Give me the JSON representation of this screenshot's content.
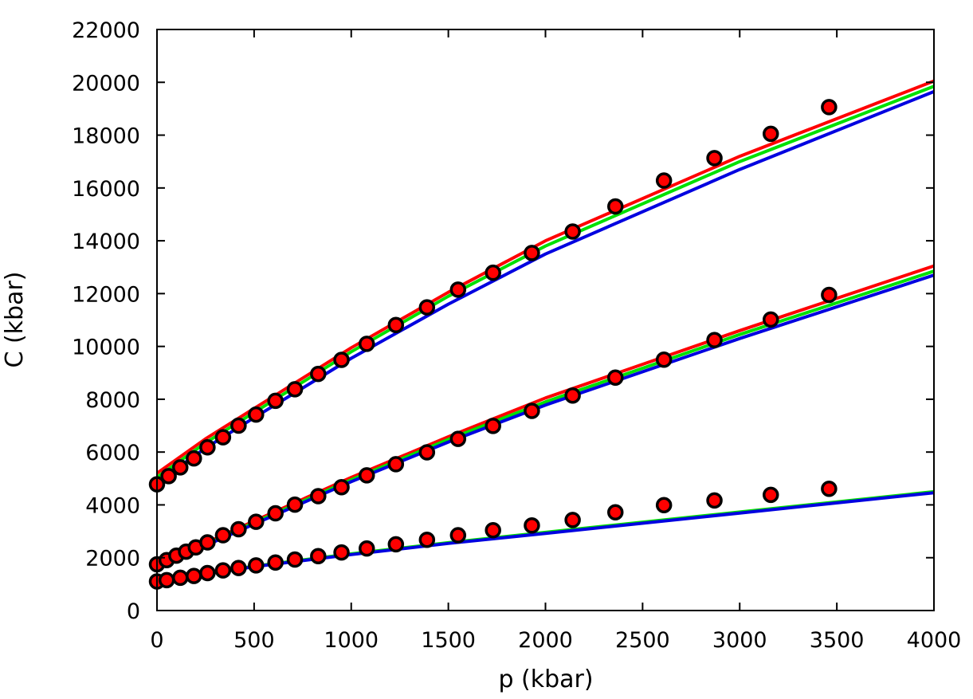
{
  "chart_data": {
    "type": "scatter",
    "xlabel": "p (kbar)",
    "ylabel": "C (kbar)",
    "xlim": [
      0,
      4000
    ],
    "ylim": [
      0,
      22000
    ],
    "xticks": [
      "0",
      "500",
      "1000",
      "1500",
      "2000",
      "2500",
      "3000",
      "3500",
      "4000"
    ],
    "yticks": [
      "0",
      "2000",
      "4000",
      "6000",
      "8000",
      "10000",
      "12000",
      "14000",
      "16000",
      "18000",
      "20000",
      "22000"
    ],
    "grid": false,
    "legend": "none",
    "markers": {
      "fill": "#ff0000",
      "stroke": "#000000",
      "groups": [
        {
          "x": [
            0,
            60,
            120,
            190,
            260,
            340,
            420,
            510,
            610,
            710,
            830,
            950,
            1080,
            1230,
            1390,
            1550,
            1730,
            1930,
            2140,
            2360,
            2610,
            2870,
            3160,
            3460
          ],
          "y": [
            4780,
            5090,
            5420,
            5760,
            6180,
            6560,
            7000,
            7420,
            7940,
            8380,
            8960,
            9490,
            10100,
            10810,
            11480,
            12150,
            12790,
            13540,
            14350,
            15300,
            16280,
            17130,
            18050,
            19060
          ]
        },
        {
          "x": [
            0,
            50,
            100,
            150,
            200,
            260,
            340,
            420,
            510,
            610,
            710,
            830,
            950,
            1080,
            1230,
            1390,
            1550,
            1730,
            1930,
            2140,
            2360,
            2610,
            2870,
            3160,
            3460
          ],
          "y": [
            1750,
            1910,
            2080,
            2230,
            2390,
            2580,
            2850,
            3080,
            3360,
            3680,
            4010,
            4330,
            4670,
            5120,
            5540,
            5990,
            6500,
            6990,
            7560,
            8140,
            8820,
            9500,
            10240,
            11020,
            11950
          ]
        },
        {
          "x": [
            0,
            50,
            120,
            190,
            260,
            340,
            420,
            510,
            610,
            710,
            830,
            950,
            1080,
            1230,
            1390,
            1550,
            1730,
            1930,
            2140,
            2360,
            2610,
            2870,
            3160,
            3460
          ],
          "y": [
            1100,
            1150,
            1240,
            1310,
            1420,
            1520,
            1610,
            1710,
            1820,
            1930,
            2060,
            2200,
            2350,
            2510,
            2680,
            2850,
            3040,
            3220,
            3430,
            3720,
            3990,
            4170,
            4380,
            4610
          ]
        }
      ]
    },
    "series": [
      {
        "color": "#ff0000",
        "x": [
          0,
          250,
          500,
          1000,
          1500,
          2000,
          3000,
          4000
        ],
        "y": [
          5200,
          6500,
          7650,
          9950,
          12050,
          14000,
          17200,
          20050
        ]
      },
      {
        "color": "#00e000",
        "x": [
          0,
          250,
          500,
          1000,
          1500,
          2000,
          3000,
          4000
        ],
        "y": [
          5050,
          6350,
          7500,
          9800,
          11900,
          13800,
          17000,
          19850
        ]
      },
      {
        "color": "#0000e0",
        "x": [
          0,
          250,
          500,
          1000,
          1500,
          2000,
          3000,
          4000
        ],
        "y": [
          4850,
          6150,
          7300,
          9550,
          11600,
          13500,
          16700,
          19650
        ]
      },
      {
        "color": "#ff0000",
        "x": [
          0,
          250,
          500,
          1000,
          1500,
          2000,
          3000,
          4000
        ],
        "y": [
          1760,
          2550,
          3390,
          5040,
          6580,
          8050,
          10600,
          13050
        ]
      },
      {
        "color": "#00e000",
        "x": [
          0,
          250,
          500,
          1000,
          1500,
          2000,
          3000,
          4000
        ],
        "y": [
          1730,
          2500,
          3330,
          4950,
          6480,
          7900,
          10450,
          12850
        ]
      },
      {
        "color": "#0000e0",
        "x": [
          0,
          250,
          500,
          1000,
          1500,
          2000,
          3000,
          4000
        ],
        "y": [
          1700,
          2460,
          3270,
          4880,
          6380,
          7780,
          10300,
          12700
        ]
      },
      {
        "color": "#00e000",
        "x": [
          0,
          250,
          500,
          1000,
          1500,
          2000,
          3000,
          4000
        ],
        "y": [
          1120,
          1400,
          1680,
          2150,
          2570,
          2960,
          3730,
          4500
        ]
      },
      {
        "color": "#0000e0",
        "x": [
          0,
          250,
          500,
          1000,
          1500,
          2000,
          3000,
          4000
        ],
        "y": [
          1100,
          1380,
          1660,
          2120,
          2540,
          2920,
          3690,
          4460
        ]
      }
    ]
  }
}
